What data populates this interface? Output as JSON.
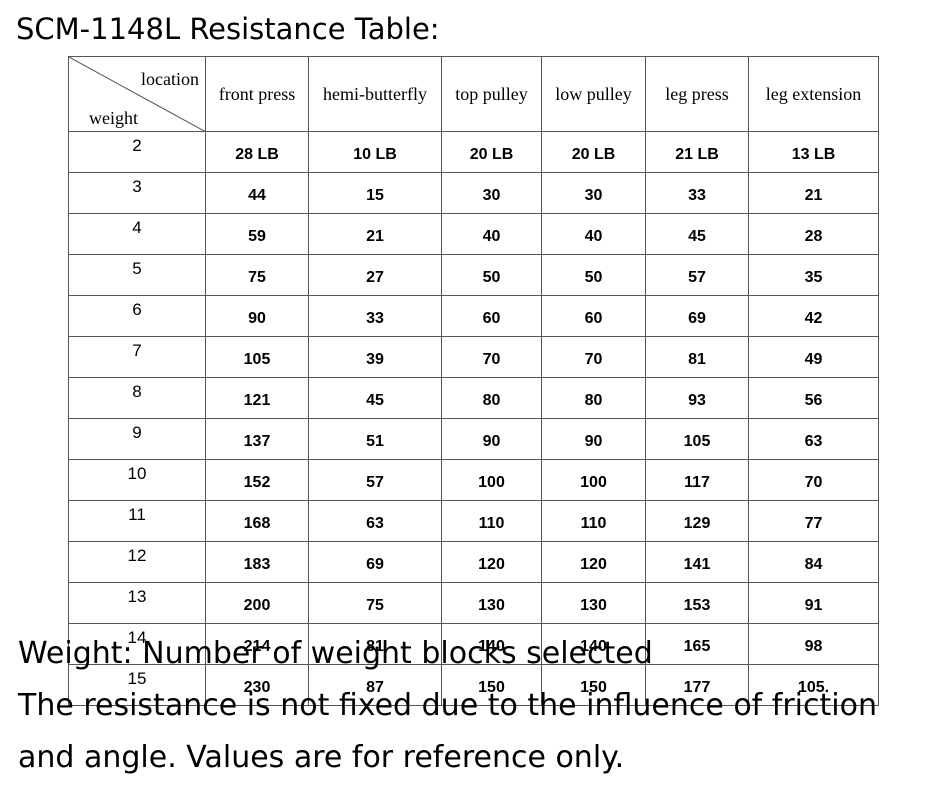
{
  "title": "SCM-1148L Resistance Table:",
  "table": {
    "corner": {
      "column_label": "location",
      "row_label": "weight"
    },
    "columns": [
      "front press",
      "hemi-butterfly",
      "top pulley",
      "low pulley",
      "leg press",
      "leg extension"
    ],
    "rows": [
      [
        "2",
        "28 LB",
        "10 LB",
        "20 LB",
        "20 LB",
        "21 LB",
        "13 LB"
      ],
      [
        "3",
        "44",
        "15",
        "30",
        "30",
        "33",
        "21"
      ],
      [
        "4",
        "59",
        "21",
        "40",
        "40",
        "45",
        "28"
      ],
      [
        "5",
        "75",
        "27",
        "50",
        "50",
        "57",
        "35"
      ],
      [
        "6",
        "90",
        "33",
        "60",
        "60",
        "69",
        "42"
      ],
      [
        "7",
        "105",
        "39",
        "70",
        "70",
        "81",
        "49"
      ],
      [
        "8",
        "121",
        "45",
        "80",
        "80",
        "93",
        "56"
      ],
      [
        "9",
        "137",
        "51",
        "90",
        "90",
        "105",
        "63"
      ],
      [
        "10",
        "152",
        "57",
        "100",
        "100",
        "117",
        "70"
      ],
      [
        "11",
        "168",
        "63",
        "110",
        "110",
        "129",
        "77"
      ],
      [
        "12",
        "183",
        "69",
        "120",
        "120",
        "141",
        "84"
      ],
      [
        "13",
        "200",
        "75",
        "130",
        "130",
        "153",
        "91"
      ],
      [
        "14",
        "214",
        "81",
        "140",
        "140",
        "165",
        "98"
      ],
      [
        "15",
        "230",
        "87",
        "150",
        "150",
        "177",
        "105."
      ]
    ]
  },
  "notes": [
    "Weight: Number of weight blocks selected",
    "The resistance is not fixed due to the influence of friction",
    "and angle. Values are for reference only."
  ]
}
